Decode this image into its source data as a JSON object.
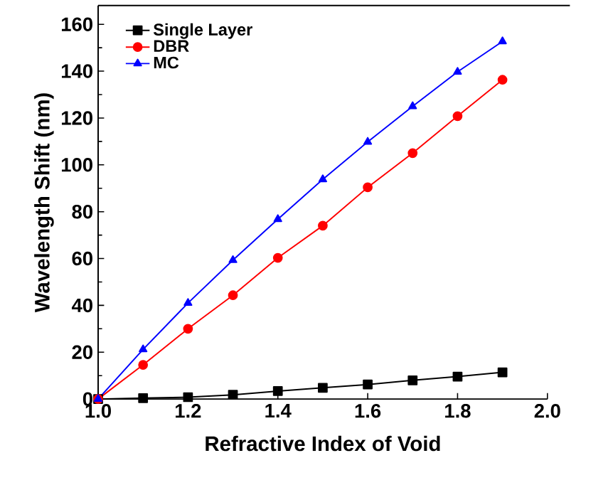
{
  "chart_data": {
    "type": "line",
    "xlabel": "Refractive Index of Void",
    "ylabel": "Wavelength Shift (nm)",
    "x": [
      1.0,
      1.1,
      1.2,
      1.3,
      1.4,
      1.5,
      1.6,
      1.7,
      1.8,
      1.9
    ],
    "series": [
      {
        "name": "Single Layer",
        "color": "#000000",
        "marker": "square",
        "values": [
          0,
          0.4,
          0.8,
          1.8,
          3.4,
          4.8,
          6.2,
          8,
          9.6,
          11.4
        ]
      },
      {
        "name": "DBR",
        "color": "#ff0000",
        "marker": "circle",
        "values": [
          0,
          14.6,
          30,
          44.3,
          60.3,
          74,
          90.4,
          105,
          120.8,
          136.3
        ]
      },
      {
        "name": "MC",
        "color": "#0000ff",
        "marker": "triangle",
        "values": [
          0,
          21.2,
          41,
          59.3,
          76.8,
          93.8,
          109.8,
          125,
          139.7,
          152.7
        ]
      }
    ],
    "xlim": [
      1.0,
      2.0
    ],
    "xticks": [
      {
        "value": 1.0,
        "label": "1.0"
      },
      1.2,
      1.4,
      1.6,
      1.8,
      {
        "value": 2.0,
        "label": "2.0"
      }
    ],
    "ylim": [
      0,
      168
    ],
    "yticks": [
      0,
      20,
      40,
      60,
      80,
      100,
      120,
      140,
      160
    ],
    "legend": "top left",
    "line_style": "solid"
  }
}
